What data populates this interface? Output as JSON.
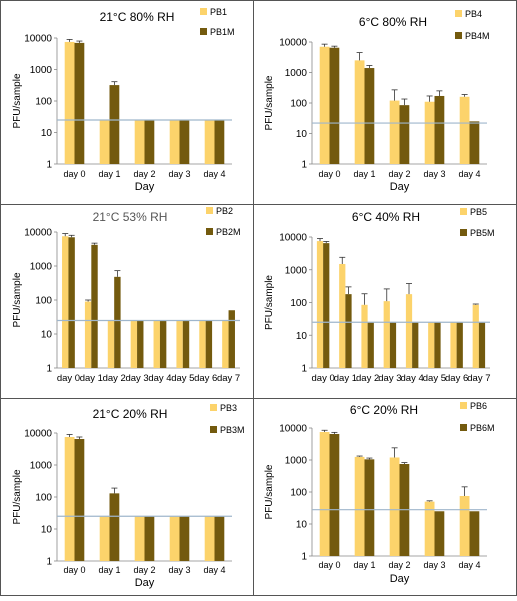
{
  "colors": {
    "light": "#FCD36B",
    "dark": "#735A0E",
    "refline": "#9FB6CC",
    "border": "#555555",
    "grid_text": "#000000"
  },
  "chart_data": [
    {
      "type": "bar",
      "title": "21°C 80% RH",
      "xlabel": "Day",
      "ylabel": "PFU/sample",
      "yscale": "log",
      "ylim": [
        1,
        10000
      ],
      "yticks": [
        "1",
        "10",
        "100",
        "1000",
        "10000"
      ],
      "reference_line": 25,
      "legend_position": "top-right",
      "categories": [
        "day 0",
        "day 1",
        "day 2",
        "day 3",
        "day 4"
      ],
      "series": [
        {
          "name": "PB1",
          "color": "#FCD36B",
          "values": [
            7500,
            25,
            25,
            25,
            25
          ],
          "errors": [
            1500,
            0,
            0,
            0,
            0
          ]
        },
        {
          "name": "PB1M",
          "color": "#735A0E",
          "values": [
            7000,
            320,
            25,
            25,
            25
          ],
          "errors": [
            1000,
            90,
            0,
            0,
            0
          ]
        }
      ]
    },
    {
      "type": "bar",
      "title": "6°C 80% RH",
      "xlabel": "Day",
      "ylabel": "PFU/sample",
      "yscale": "log",
      "ylim": [
        1,
        10000
      ],
      "yticks": [
        "1",
        "10",
        "100",
        "1000",
        "10000"
      ],
      "reference_line": 22,
      "legend_position": "top-right",
      "categories": [
        "day 0",
        "day 1",
        "day 2",
        "day 3",
        "day 4"
      ],
      "series": [
        {
          "name": "PB4",
          "color": "#FCD36B",
          "values": [
            7000,
            2500,
            120,
            110,
            160
          ],
          "errors": [
            1500,
            2000,
            150,
            60,
            30
          ]
        },
        {
          "name": "PB4M",
          "color": "#735A0E",
          "values": [
            6500,
            1400,
            85,
            170,
            25
          ],
          "errors": [
            800,
            300,
            50,
            80,
            0
          ]
        }
      ]
    },
    {
      "type": "bar",
      "title": "21°C 53% RH",
      "xlabel": "",
      "ylabel": "PFU/sample",
      "yscale": "log",
      "ylim": [
        1,
        10000
      ],
      "yticks": [
        "1",
        "10",
        "100",
        "1000",
        "10000"
      ],
      "reference_line": 25,
      "legend_position": "top-right",
      "categories": [
        "day 0",
        "day 1",
        "day 2",
        "day 3",
        "day 4",
        "day 5",
        "day 6",
        "day 7"
      ],
      "series": [
        {
          "name": "PB2",
          "color": "#FCD36B",
          "values": [
            7500,
            90,
            25,
            25,
            25,
            25,
            25,
            25
          ],
          "errors": [
            1500,
            10,
            0,
            0,
            0,
            0,
            0,
            0
          ]
        },
        {
          "name": "PB2M",
          "color": "#735A0E",
          "values": [
            7000,
            4200,
            480,
            25,
            25,
            25,
            25,
            50
          ],
          "errors": [
            1000,
            500,
            250,
            0,
            0,
            0,
            0,
            0
          ]
        }
      ]
    },
    {
      "type": "bar",
      "title": "6°C 40% RH",
      "xlabel": "",
      "ylabel": "PFU/sample",
      "yscale": "log",
      "ylim": [
        1,
        10000
      ],
      "yticks": [
        "1",
        "10",
        "100",
        "1000",
        "10000"
      ],
      "reference_line": 25,
      "legend_position": "top-right",
      "categories": [
        "day 0",
        "day 1",
        "day 2",
        "day 3",
        "day 4",
        "day 5",
        "day 6",
        "day 7"
      ],
      "series": [
        {
          "name": "PB5",
          "color": "#FCD36B",
          "values": [
            7500,
            1500,
            85,
            110,
            180,
            25,
            25,
            85
          ],
          "errors": [
            1500,
            900,
            100,
            150,
            200,
            0,
            0,
            5
          ]
        },
        {
          "name": "PB5M",
          "color": "#735A0E",
          "values": [
            6500,
            180,
            25,
            25,
            25,
            25,
            25,
            25
          ],
          "errors": [
            800,
            120,
            0,
            0,
            0,
            0,
            0,
            0
          ]
        }
      ]
    },
    {
      "type": "bar",
      "title": "21°C 20% RH",
      "xlabel": "Day",
      "ylabel": "PFU/sample",
      "yscale": "log",
      "ylim": [
        1,
        10000
      ],
      "yticks": [
        "1",
        "10",
        "100",
        "1000",
        "10000"
      ],
      "reference_line": 25,
      "legend_position": "top-right",
      "categories": [
        "day 0",
        "day 1",
        "day 2",
        "day 3",
        "day 4"
      ],
      "series": [
        {
          "name": "PB3",
          "color": "#FCD36B",
          "values": [
            7500,
            25,
            25,
            25,
            25
          ],
          "errors": [
            1500,
            0,
            0,
            0,
            0
          ]
        },
        {
          "name": "PB3M",
          "color": "#735A0E",
          "values": [
            6500,
            130,
            25,
            25,
            25
          ],
          "errors": [
            1000,
            60,
            0,
            0,
            0
          ]
        }
      ]
    },
    {
      "type": "bar",
      "title": "6°C 20% RH",
      "xlabel": "Day",
      "ylabel": "PFU/sample",
      "yscale": "log",
      "ylim": [
        1,
        10000
      ],
      "yticks": [
        "1",
        "10",
        "100",
        "1000",
        "10000"
      ],
      "reference_line": 28,
      "legend_position": "top-right",
      "categories": [
        "day 0",
        "day 1",
        "day 2",
        "day 3",
        "day 4"
      ],
      "series": [
        {
          "name": "PB6",
          "color": "#FCD36B",
          "values": [
            7500,
            1250,
            1200,
            50,
            75
          ],
          "errors": [
            1000,
            80,
            1200,
            3,
            70
          ]
        },
        {
          "name": "PB6M",
          "color": "#735A0E",
          "values": [
            6500,
            1050,
            750,
            25,
            25
          ],
          "errors": [
            800,
            100,
            80,
            0,
            0
          ]
        }
      ]
    }
  ]
}
